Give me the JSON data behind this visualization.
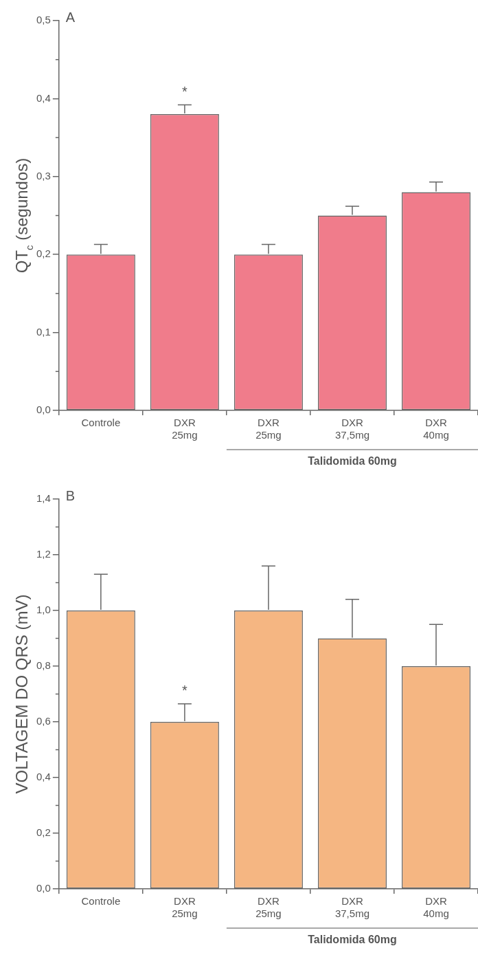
{
  "chart_data": [
    {
      "type": "bar",
      "ylabel": "QT$_{c}$ (segundos)",
      "categories": [
        "Controle",
        "DXR\n25mg",
        "DXR\n25mg",
        "DXR\n37,5mg",
        "DXR\n40mg"
      ],
      "values": [
        0.2,
        0.38,
        0.2,
        0.25,
        0.28
      ],
      "errors": [
        0.013,
        0.012,
        0.013,
        0.012,
        0.013
      ],
      "color": "#f07c8b",
      "ylim": [
        0,
        0.5
      ],
      "yticks": [
        {
          "value": 0,
          "label": "0,0"
        },
        {
          "value": 0.1,
          "label": "0,1"
        },
        {
          "value": 0.2,
          "label": "0,2"
        },
        {
          "value": 0.3,
          "label": "0,3"
        },
        {
          "value": 0.4,
          "label": "0,4"
        },
        {
          "value": 0.5,
          "label": "0,5"
        }
      ],
      "grid": false,
      "legend": false,
      "annotations": [
        "A",
        "*",
        "Talidomida 60mg"
      ]
    },
    {
      "type": "bar",
      "ylabel": "VOLTAGEM DO QRS (mV)",
      "categories": [
        "Controle",
        "DXR\n25mg",
        "DXR\n25mg",
        "DXR\n37,5mg",
        "DXR\n40mg"
      ],
      "values": [
        1.0,
        0.6,
        1.0,
        0.9,
        0.8
      ],
      "errors": [
        0.13,
        0.065,
        0.16,
        0.14,
        0.15
      ],
      "color": "#f5b682",
      "ylim": [
        0,
        1.4
      ],
      "yticks": [
        {
          "value": 0,
          "label": "0,0"
        },
        {
          "value": 0.2,
          "label": "0,2"
        },
        {
          "value": 0.4,
          "label": "0,4"
        },
        {
          "value": 0.6,
          "label": "0,6"
        },
        {
          "value": 0.8,
          "label": "0,8"
        },
        {
          "value": 1.0,
          "label": "1,0"
        },
        {
          "value": 1.2,
          "label": "1,2"
        },
        {
          "value": 1.4,
          "label": "1,4"
        }
      ],
      "grid": false,
      "legend": false,
      "annotations": [
        "B",
        "*",
        "Talidomida 60mg"
      ]
    }
  ]
}
